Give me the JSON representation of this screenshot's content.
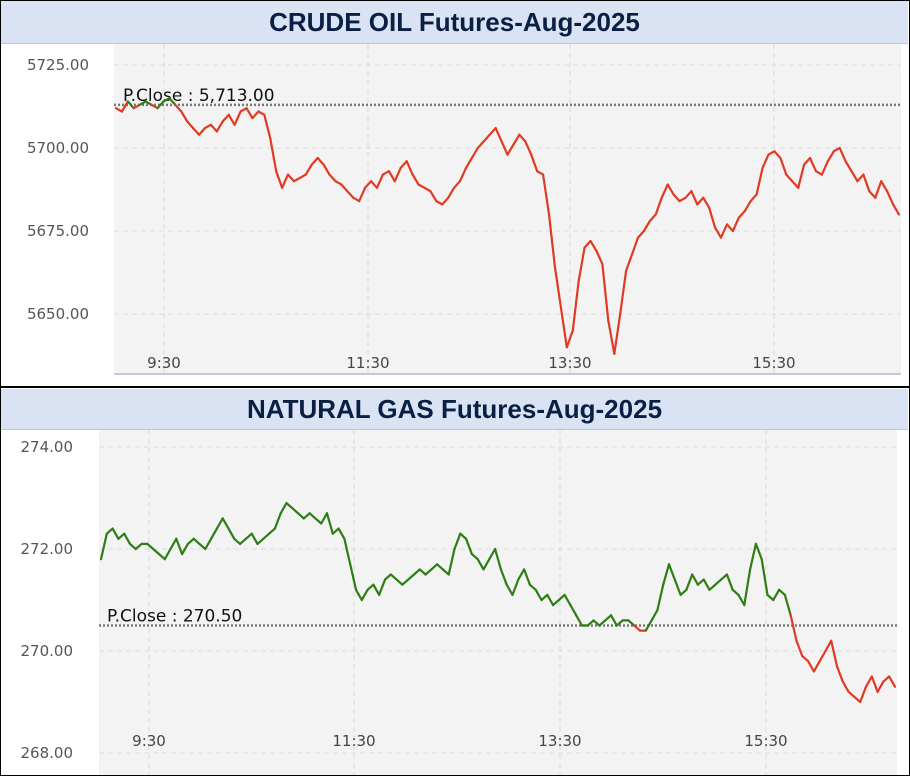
{
  "chart_data": [
    {
      "type": "line",
      "title": "CRUDE OIL Futures-Aug-2025",
      "y_ticks": [
        "5725.00",
        "5700.00",
        "5675.00",
        "5650.00"
      ],
      "x_ticks": [
        "9:30",
        "11:30",
        "13:30",
        "15:30"
      ],
      "ylim": [
        5640,
        5725
      ],
      "prev_close": 5713.0,
      "prev_close_label": "P.Close : 5,713.00",
      "up_color": "#2e7d15",
      "down_color": "#e03a24",
      "series": [
        {
          "values": [
            5712,
            5711,
            5714,
            5712,
            5713,
            5714,
            5713,
            5712,
            5714,
            5715,
            5713,
            5711,
            5708,
            5706,
            5704,
            5706,
            5707,
            5705,
            5708,
            5710,
            5707,
            5711,
            5712,
            5709,
            5711,
            5710,
            5703,
            5693,
            5688,
            5692,
            5690,
            5691,
            5692,
            5695,
            5697,
            5695,
            5692,
            5690,
            5689,
            5687,
            5685,
            5684,
            5688,
            5690,
            5688,
            5692,
            5693,
            5690,
            5694,
            5696,
            5692,
            5689,
            5688,
            5687,
            5684,
            5683,
            5685,
            5688,
            5690,
            5694,
            5697,
            5700,
            5702,
            5704,
            5706,
            5702,
            5698,
            5701,
            5704,
            5702,
            5698,
            5693,
            5692,
            5680,
            5664,
            5652,
            5640,
            5645,
            5660,
            5670,
            5672,
            5669,
            5665,
            5648,
            5638,
            5650,
            5663,
            5668,
            5673,
            5675,
            5678,
            5680,
            5685,
            5689,
            5686,
            5684,
            5685,
            5687,
            5683,
            5685,
            5682,
            5676,
            5673,
            5677,
            5675,
            5679,
            5681,
            5684,
            5686,
            5694,
            5698,
            5699,
            5697,
            5692,
            5690,
            5688,
            5695,
            5697,
            5693,
            5692,
            5696,
            5699,
            5700,
            5696,
            5693,
            5690,
            5692,
            5687,
            5685,
            5690,
            5687,
            5683,
            5680
          ]
        }
      ]
    },
    {
      "type": "line",
      "title": "NATURAL GAS Futures-Aug-2025",
      "y_ticks": [
        "274.00",
        "272.00",
        "270.00",
        "268.00"
      ],
      "x_ticks": [
        "9:30",
        "11:30",
        "13:30",
        "15:30"
      ],
      "ylim": [
        268,
        274
      ],
      "prev_close": 270.5,
      "prev_close_label": "P.Close : 270.50",
      "up_color": "#2e7d15",
      "down_color": "#e03a24",
      "series": [
        {
          "values": [
            271.8,
            272.3,
            272.4,
            272.2,
            272.3,
            272.1,
            272.0,
            272.1,
            272.1,
            272.0,
            271.9,
            271.8,
            272.0,
            272.2,
            271.9,
            272.1,
            272.2,
            272.1,
            272.0,
            272.2,
            272.4,
            272.6,
            272.4,
            272.2,
            272.1,
            272.2,
            272.3,
            272.1,
            272.2,
            272.3,
            272.4,
            272.7,
            272.9,
            272.8,
            272.7,
            272.6,
            272.7,
            272.6,
            272.5,
            272.7,
            272.3,
            272.4,
            272.2,
            271.7,
            271.2,
            271.0,
            271.2,
            271.3,
            271.1,
            271.4,
            271.5,
            271.4,
            271.3,
            271.4,
            271.5,
            271.6,
            271.5,
            271.6,
            271.7,
            271.6,
            271.5,
            272.0,
            272.3,
            272.2,
            271.9,
            271.8,
            271.6,
            271.8,
            272.0,
            271.6,
            271.3,
            271.1,
            271.4,
            271.6,
            271.3,
            271.2,
            271.0,
            271.1,
            270.9,
            271.0,
            271.1,
            270.9,
            270.7,
            270.5,
            270.5,
            270.6,
            270.5,
            270.6,
            270.7,
            270.5,
            270.6,
            270.6,
            270.5,
            270.4,
            270.4,
            270.6,
            270.8,
            271.3,
            271.7,
            271.4,
            271.1,
            271.2,
            271.5,
            271.3,
            271.4,
            271.2,
            271.3,
            271.4,
            271.5,
            271.2,
            271.1,
            270.9,
            271.6,
            272.1,
            271.8,
            271.1,
            271.0,
            271.2,
            271.1,
            270.7,
            270.2,
            269.9,
            269.8,
            269.6,
            269.8,
            270.0,
            270.2,
            269.7,
            269.4,
            269.2,
            269.1,
            269.0,
            269.3,
            269.5,
            269.2,
            269.4,
            269.5,
            269.3
          ]
        }
      ]
    }
  ]
}
